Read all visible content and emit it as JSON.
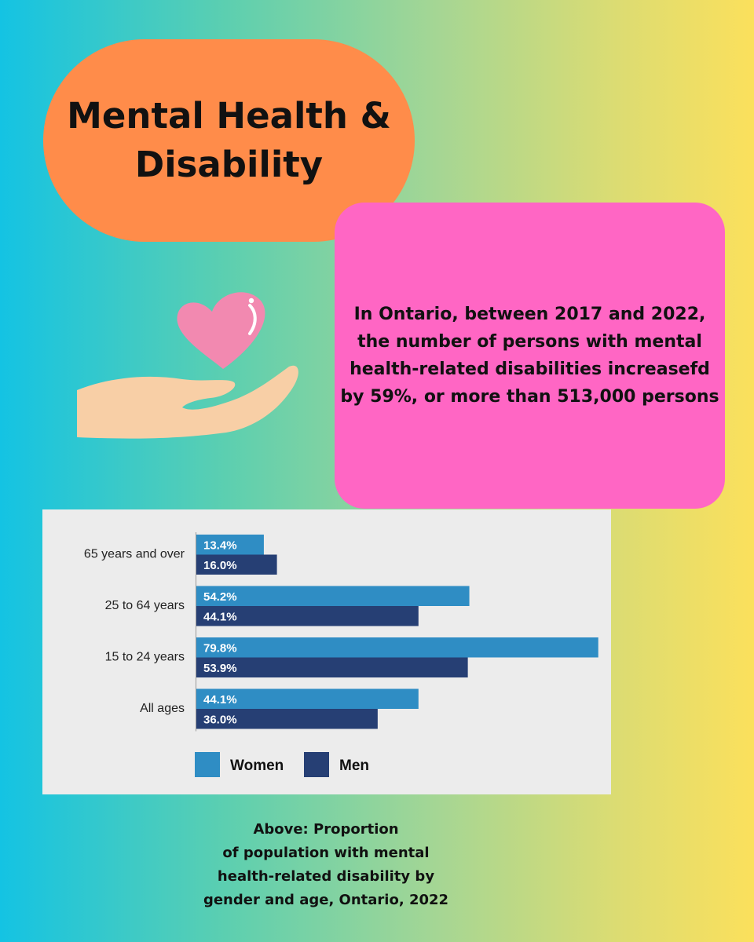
{
  "title": {
    "line1": "Mental Health &",
    "line2": "Disability"
  },
  "stat_text": "In Ontario, between 2017 and 2022, the number of persons with mental health-related disabilities increasefd by 59%, or more than 513,000 persons",
  "icon": "heart-in-hand-icon",
  "colors": {
    "women": "#2f8dc4",
    "men": "#263f74",
    "title_pill": "#ff8c4a",
    "stat_box": "#ff66c4"
  },
  "chart_data": {
    "type": "bar",
    "orientation": "horizontal",
    "categories": [
      "65 years and over",
      "25 to 64 years",
      "15 to 24 years",
      "All ages"
    ],
    "series": [
      {
        "name": "Women",
        "values": [
          13.4,
          54.2,
          79.8,
          44.1
        ],
        "labels": [
          "13.4%",
          "54.2%",
          "79.8%",
          "44.1%"
        ],
        "color": "#2f8dc4"
      },
      {
        "name": "Men",
        "values": [
          16.0,
          44.1,
          53.9,
          36.0
        ],
        "labels": [
          "16.0%",
          "44.1%",
          "53.9%",
          "36.0%"
        ],
        "color": "#263f74"
      }
    ],
    "xlim": [
      0,
      80
    ],
    "grid": false,
    "legend_position": "bottom-left"
  },
  "caption": {
    "line1": "Above: Proportion",
    "line2": "of population with mental",
    "line3": "health-related disability by",
    "line4": "gender and age, Ontario, 2022"
  }
}
